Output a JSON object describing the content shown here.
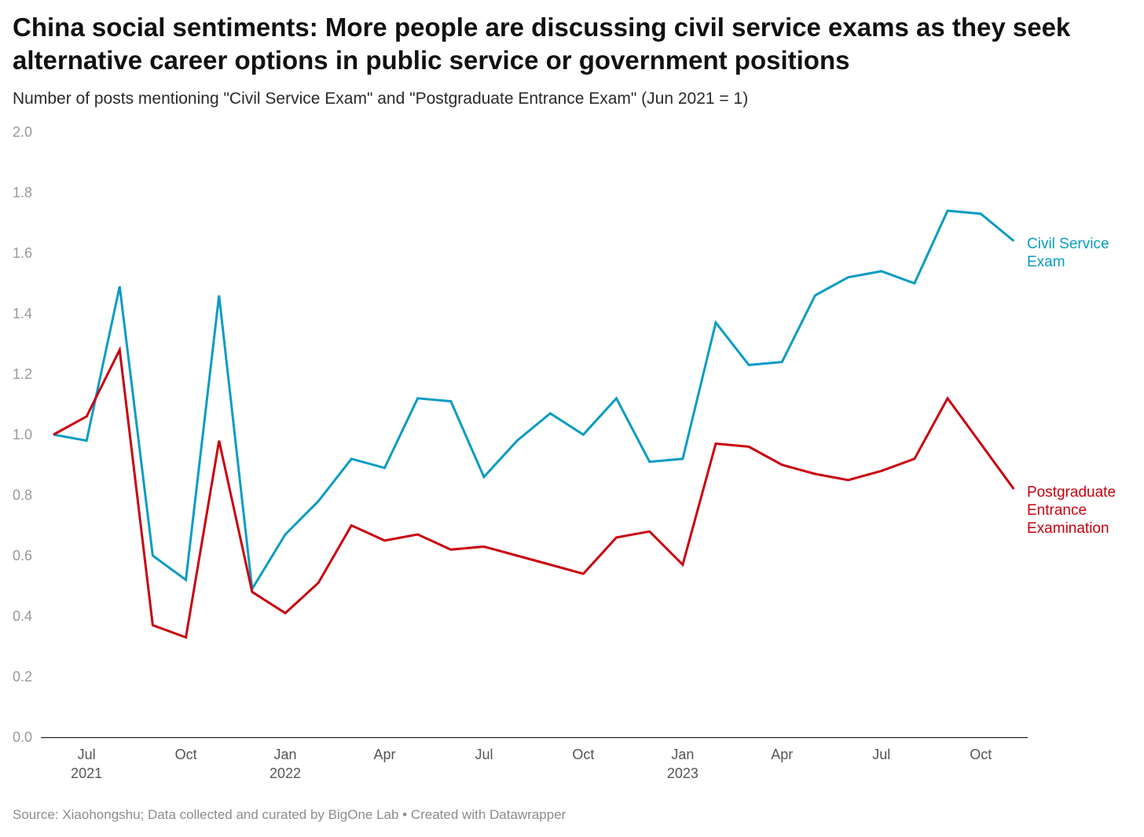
{
  "title": "China social sentiments: More people are discussing civil service exams as they seek alternative career options in public service or government positions",
  "subtitle": "Number of posts mentioning \"Civil Service Exam\" and \"Postgraduate Entrance Exam\" (Jun 2021 = 1)",
  "source": "Source: Xiaohongshu; Data collected and curated by BigOne Lab • Created with Datawrapper",
  "colors": {
    "civil": "#0a9cc4",
    "postgrad": "#c9000f",
    "axis": "#222222",
    "tick": "#999999"
  },
  "chart_data": {
    "type": "line",
    "x": [
      "2021-06",
      "2021-07",
      "2021-08",
      "2021-09",
      "2021-10",
      "2021-11",
      "2021-12",
      "2022-01",
      "2022-02",
      "2022-03",
      "2022-04",
      "2022-05",
      "2022-06",
      "2022-07",
      "2022-08",
      "2022-09",
      "2022-10",
      "2022-11",
      "2022-12",
      "2023-01",
      "2023-02",
      "2023-03",
      "2023-04",
      "2023-05",
      "2023-06",
      "2023-07",
      "2023-08",
      "2023-09",
      "2023-10",
      "2023-11"
    ],
    "ylim": [
      0,
      2.0
    ],
    "yticks": [
      "0.0",
      "0.2",
      "0.4",
      "0.6",
      "0.8",
      "1.0",
      "1.2",
      "1.4",
      "1.6",
      "1.8",
      "2.0"
    ],
    "xticks": [
      {
        "month": "2021-07",
        "label": "Jul",
        "year": "2021"
      },
      {
        "month": "2021-10",
        "label": "Oct",
        "year": ""
      },
      {
        "month": "2022-01",
        "label": "Jan",
        "year": "2022"
      },
      {
        "month": "2022-04",
        "label": "Apr",
        "year": ""
      },
      {
        "month": "2022-07",
        "label": "Jul",
        "year": ""
      },
      {
        "month": "2022-10",
        "label": "Oct",
        "year": ""
      },
      {
        "month": "2023-01",
        "label": "Jan",
        "year": "2023"
      },
      {
        "month": "2023-04",
        "label": "Apr",
        "year": ""
      },
      {
        "month": "2023-07",
        "label": "Jul",
        "year": ""
      },
      {
        "month": "2023-10",
        "label": "Oct",
        "year": ""
      }
    ],
    "grid": false,
    "series": [
      {
        "key": "civil",
        "label_lines": [
          "Civil Service",
          "Exam"
        ],
        "values": [
          1.0,
          0.98,
          1.49,
          0.6,
          0.52,
          1.46,
          0.49,
          0.67,
          0.78,
          0.92,
          0.89,
          1.12,
          1.11,
          0.86,
          0.98,
          1.07,
          1.0,
          1.12,
          0.91,
          0.92,
          1.37,
          1.23,
          1.24,
          1.46,
          1.52,
          1.54,
          1.5,
          1.74,
          1.73,
          1.64
        ]
      },
      {
        "key": "postgrad",
        "label_lines": [
          "Postgraduate",
          "Entrance",
          "Examination"
        ],
        "values": [
          1.0,
          1.06,
          1.28,
          0.37,
          0.33,
          0.98,
          0.48,
          0.41,
          0.51,
          0.7,
          0.65,
          0.67,
          0.62,
          0.63,
          0.6,
          0.57,
          0.54,
          0.66,
          0.68,
          0.57,
          0.97,
          0.96,
          0.9,
          0.87,
          0.85,
          0.88,
          0.92,
          1.12,
          0.97,
          0.82
        ]
      }
    ]
  }
}
